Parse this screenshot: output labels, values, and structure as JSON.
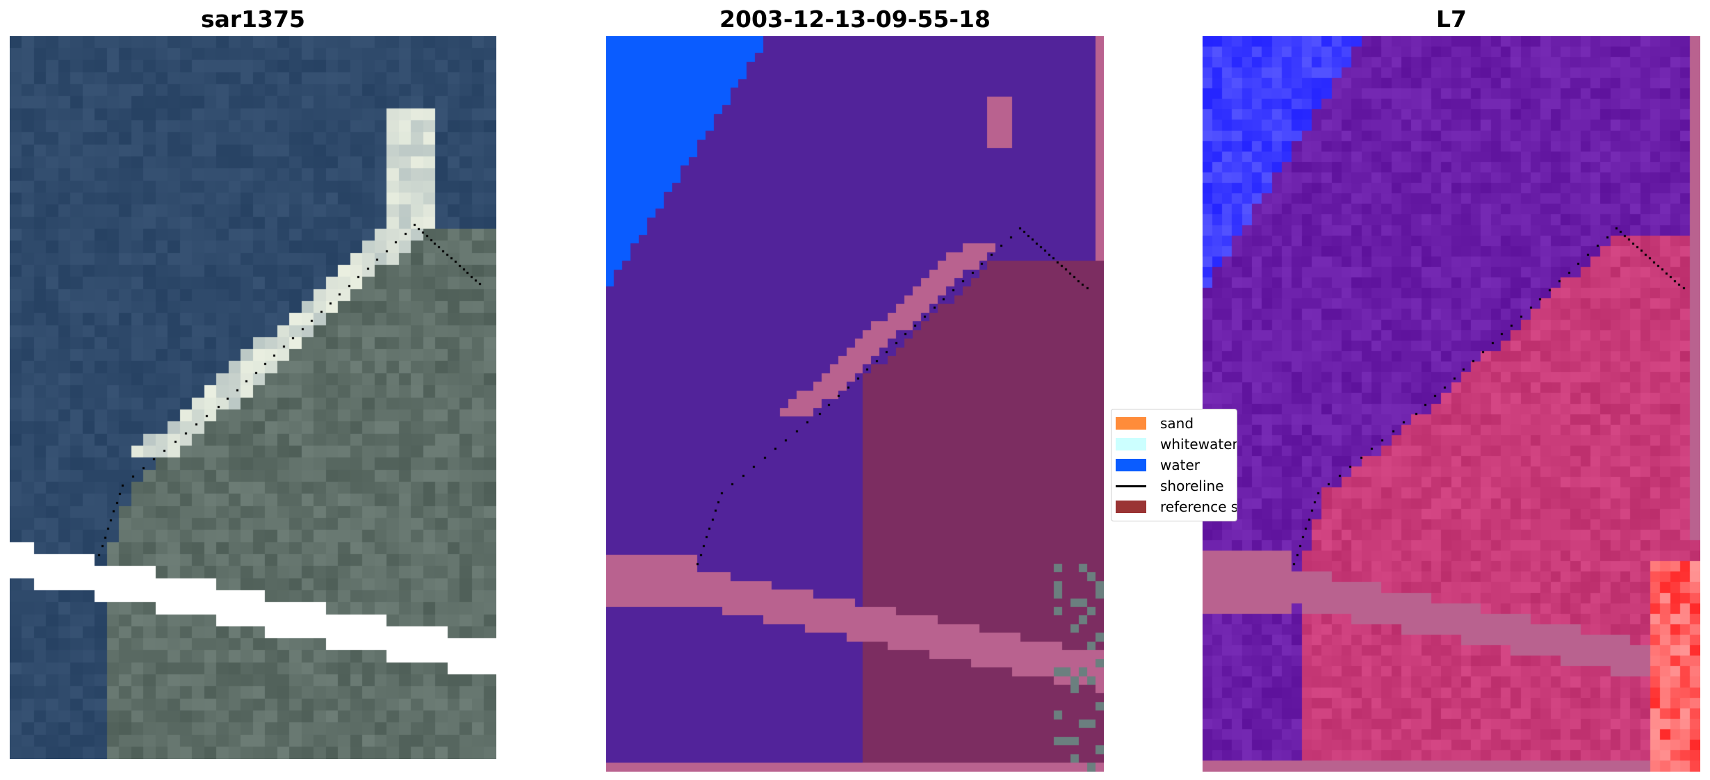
{
  "panels": [
    {
      "title": "sar1375"
    },
    {
      "title": "2003-12-13-09-55-18"
    },
    {
      "title": "L7"
    }
  ],
  "legend": {
    "items": [
      {
        "label": "sand",
        "color": "#ff8c3a",
        "kind": "patch"
      },
      {
        "label": "whitewater",
        "color": "#ccffff",
        "kind": "patch"
      },
      {
        "label": "water",
        "color": "#0a5cff",
        "kind": "patch"
      },
      {
        "label": "shoreline",
        "color": "#000000",
        "kind": "line"
      },
      {
        "label": "reference shoreline buffer",
        "color": "#9a3434",
        "kind": "patch"
      }
    ]
  },
  "colors": {
    "sea_rgb": "#2f4a6b",
    "land_rgb": "#5e6e67",
    "classified_background": "#52239a",
    "classified_water": "#0a5cff",
    "classified_land_overlay": "#b9628f",
    "classified_reference": "#7c2d61",
    "mndwi_background": "#6a1ea8",
    "mndwi_water": "#3c3cff",
    "mndwi_land": "#c83a78",
    "nodata": "#ffffff"
  }
}
